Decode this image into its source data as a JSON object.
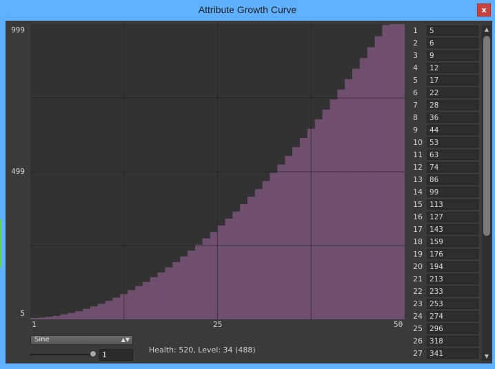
{
  "window": {
    "title": "Attribute Growth Curve",
    "close_label": "x"
  },
  "chart_data": {
    "type": "bar",
    "x": [
      1,
      2,
      3,
      4,
      5,
      6,
      7,
      8,
      9,
      10,
      11,
      12,
      13,
      14,
      15,
      16,
      17,
      18,
      19,
      20,
      21,
      22,
      23,
      24,
      25,
      26,
      27,
      28,
      29,
      30,
      31,
      32,
      33,
      34,
      35,
      36,
      37,
      38,
      39,
      40,
      41,
      42,
      43,
      44,
      45,
      46,
      47,
      48,
      49,
      50
    ],
    "values": [
      5,
      6,
      9,
      12,
      17,
      22,
      28,
      36,
      44,
      53,
      63,
      74,
      86,
      99,
      113,
      127,
      143,
      159,
      176,
      194,
      213,
      233,
      253,
      274,
      296,
      318,
      341,
      365,
      390,
      415,
      441,
      468,
      496,
      524,
      553,
      583,
      614,
      645,
      677,
      710,
      744,
      778,
      813,
      848,
      884,
      921,
      958,
      996,
      999,
      999
    ],
    "ylim": [
      5,
      999
    ],
    "xlim": [
      1,
      50
    ],
    "y_tick_labels": [
      "999",
      "499",
      "5"
    ],
    "x_tick_labels": [
      "1",
      "25",
      "50"
    ],
    "grid": true,
    "bar_color": "#6f4f6e",
    "background": "#323232"
  },
  "controls": {
    "curve_type": "Sine",
    "level_value": "1",
    "slider_level": 1,
    "status_text": "Health: 520, Level: 34 (488)"
  },
  "list": {
    "rows": [
      {
        "level": "1",
        "value": "5"
      },
      {
        "level": "2",
        "value": "6"
      },
      {
        "level": "3",
        "value": "9"
      },
      {
        "level": "4",
        "value": "12"
      },
      {
        "level": "5",
        "value": "17"
      },
      {
        "level": "6",
        "value": "22"
      },
      {
        "level": "7",
        "value": "28"
      },
      {
        "level": "8",
        "value": "36"
      },
      {
        "level": "9",
        "value": "44"
      },
      {
        "level": "10",
        "value": "53"
      },
      {
        "level": "11",
        "value": "63"
      },
      {
        "level": "12",
        "value": "74"
      },
      {
        "level": "13",
        "value": "86"
      },
      {
        "level": "14",
        "value": "99"
      },
      {
        "level": "15",
        "value": "113"
      },
      {
        "level": "16",
        "value": "127"
      },
      {
        "level": "17",
        "value": "143"
      },
      {
        "level": "18",
        "value": "159"
      },
      {
        "level": "19",
        "value": "176"
      },
      {
        "level": "20",
        "value": "194"
      },
      {
        "level": "21",
        "value": "213"
      },
      {
        "level": "22",
        "value": "233"
      },
      {
        "level": "23",
        "value": "253"
      },
      {
        "level": "24",
        "value": "274"
      },
      {
        "level": "25",
        "value": "296"
      },
      {
        "level": "26",
        "value": "318"
      },
      {
        "level": "27",
        "value": "341"
      }
    ]
  }
}
